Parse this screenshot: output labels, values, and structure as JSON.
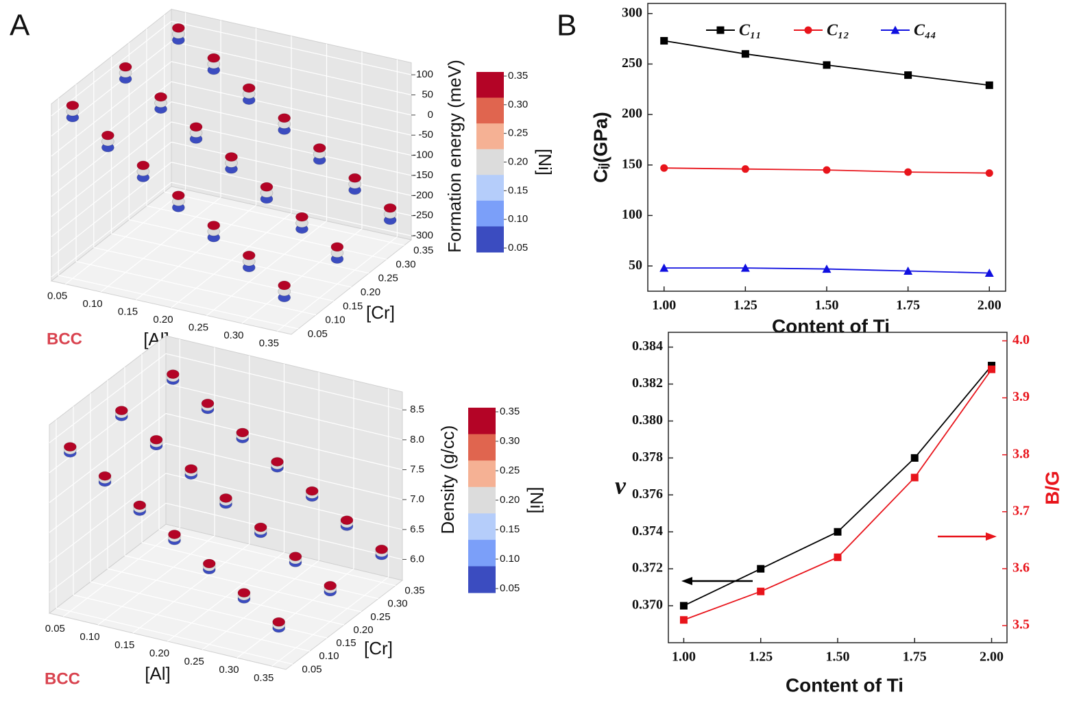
{
  "panel_labels": [
    "A",
    "B"
  ],
  "chart_data": [
    {
      "type": "scatter3d",
      "annotation": "BCC",
      "xlabel": "[Al]",
      "ylabel": "[Cr]",
      "zlabel": "Formation energy (meV)",
      "colorbar_label": "[Ni]",
      "xlim": [
        0.03,
        0.37
      ],
      "ylim": [
        0.03,
        0.37
      ],
      "zlim": [
        -310,
        130
      ],
      "xticks": [
        0.05,
        {
          "value": 0.1,
          "label": "0.10"
        },
        0.15,
        {
          "value": 0.2,
          "label": "0.20"
        },
        0.25,
        {
          "value": 0.3,
          "label": "0.30"
        },
        0.35
      ],
      "yticks": [
        0.05,
        {
          "value": 0.1,
          "label": "0.10"
        },
        0.15,
        {
          "value": 0.2,
          "label": "0.20"
        },
        0.25,
        {
          "value": 0.3,
          "label": "0.30"
        },
        0.35
      ],
      "zticks": [
        100,
        50,
        0,
        -50,
        -100,
        -150,
        -200,
        -250,
        -300
      ],
      "colorbar": {
        "ticks": [
          0.35,
          {
            "value": 0.3,
            "label": "0.30"
          },
          0.25,
          {
            "value": 0.2,
            "label": "0.20"
          },
          0.15,
          {
            "value": 0.1,
            "label": "0.10"
          },
          0.05
        ],
        "colors": [
          "#b40426",
          "#e0654f",
          "#f5b194",
          "#dcdcdc",
          "#b5cdfa",
          "#7b9ff9",
          "#3b4cc0"
        ]
      },
      "points": [
        [
          0.05,
          0.05,
          90,
          0.05
        ],
        [
          0.05,
          0.05,
          105,
          0.2
        ],
        [
          0.05,
          0.05,
          120,
          0.35
        ],
        [
          0.05,
          0.2,
          82,
          0.05
        ],
        [
          0.05,
          0.2,
          97,
          0.2
        ],
        [
          0.05,
          0.2,
          112,
          0.35
        ],
        [
          0.05,
          0.35,
          75,
          0.05
        ],
        [
          0.05,
          0.35,
          90,
          0.2
        ],
        [
          0.05,
          0.35,
          105,
          0.35
        ],
        [
          0.1,
          0.05,
          35,
          0.05
        ],
        [
          0.1,
          0.05,
          50,
          0.2
        ],
        [
          0.1,
          0.05,
          65,
          0.35
        ],
        [
          0.1,
          0.2,
          27,
          0.05
        ],
        [
          0.1,
          0.2,
          42,
          0.2
        ],
        [
          0.1,
          0.2,
          57,
          0.35
        ],
        [
          0.1,
          0.35,
          20,
          0.05
        ],
        [
          0.1,
          0.35,
          35,
          0.2
        ],
        [
          0.1,
          0.35,
          50,
          0.35
        ],
        [
          0.15,
          0.05,
          -20,
          0.05
        ],
        [
          0.15,
          0.05,
          -5,
          0.2
        ],
        [
          0.15,
          0.05,
          10,
          0.35
        ],
        [
          0.15,
          0.2,
          -28,
          0.05
        ],
        [
          0.15,
          0.2,
          -13,
          0.2
        ],
        [
          0.15,
          0.2,
          2,
          0.35
        ],
        [
          0.15,
          0.35,
          -35,
          0.05
        ],
        [
          0.15,
          0.35,
          -20,
          0.2
        ],
        [
          0.15,
          0.35,
          -5,
          0.35
        ],
        [
          0.2,
          0.05,
          -75,
          0.05
        ],
        [
          0.2,
          0.05,
          -60,
          0.2
        ],
        [
          0.2,
          0.05,
          -45,
          0.35
        ],
        [
          0.2,
          0.2,
          -83,
          0.05
        ],
        [
          0.2,
          0.2,
          -68,
          0.2
        ],
        [
          0.2,
          0.2,
          -53,
          0.35
        ],
        [
          0.2,
          0.35,
          -90,
          0.05
        ],
        [
          0.2,
          0.35,
          -75,
          0.2
        ],
        [
          0.2,
          0.35,
          -60,
          0.35
        ],
        [
          0.25,
          0.05,
          -130,
          0.05
        ],
        [
          0.25,
          0.05,
          -115,
          0.2
        ],
        [
          0.25,
          0.05,
          -100,
          0.35
        ],
        [
          0.25,
          0.2,
          -138,
          0.05
        ],
        [
          0.25,
          0.2,
          -123,
          0.2
        ],
        [
          0.25,
          0.2,
          -108,
          0.35
        ],
        [
          0.25,
          0.35,
          -145,
          0.05
        ],
        [
          0.25,
          0.35,
          -130,
          0.2
        ],
        [
          0.25,
          0.35,
          -115,
          0.35
        ],
        [
          0.3,
          0.05,
          -185,
          0.05
        ],
        [
          0.3,
          0.05,
          -170,
          0.2
        ],
        [
          0.3,
          0.05,
          -155,
          0.35
        ],
        [
          0.3,
          0.2,
          -193,
          0.05
        ],
        [
          0.3,
          0.2,
          -178,
          0.2
        ],
        [
          0.3,
          0.2,
          -163,
          0.35
        ],
        [
          0.3,
          0.35,
          -200,
          0.05
        ],
        [
          0.3,
          0.35,
          -185,
          0.2
        ],
        [
          0.3,
          0.35,
          -170,
          0.35
        ],
        [
          0.35,
          0.05,
          -240,
          0.05
        ],
        [
          0.35,
          0.05,
          -225,
          0.2
        ],
        [
          0.35,
          0.05,
          -210,
          0.35
        ],
        [
          0.35,
          0.2,
          -248,
          0.05
        ],
        [
          0.35,
          0.2,
          -233,
          0.2
        ],
        [
          0.35,
          0.2,
          -218,
          0.35
        ],
        [
          0.35,
          0.35,
          -255,
          0.05
        ],
        [
          0.35,
          0.35,
          -240,
          0.2
        ],
        [
          0.35,
          0.35,
          -225,
          0.35
        ]
      ]
    },
    {
      "type": "scatter3d",
      "annotation": "BCC",
      "xlabel": "[Al]",
      "ylabel": "[Cr]",
      "zlabel": "Density (g/cc)",
      "colorbar_label": "[Ni]",
      "xlim": [
        0.03,
        0.37
      ],
      "ylim": [
        0.03,
        0.37
      ],
      "zlim": [
        5.65,
        8.8
      ],
      "xticks": [
        0.05,
        {
          "value": 0.1,
          "label": "0.10"
        },
        0.15,
        {
          "value": 0.2,
          "label": "0.20"
        },
        0.25,
        {
          "value": 0.3,
          "label": "0.30"
        },
        0.35
      ],
      "yticks": [
        0.05,
        {
          "value": 0.1,
          "label": "0.10"
        },
        0.15,
        {
          "value": 0.2,
          "label": "0.20"
        },
        0.25,
        {
          "value": 0.3,
          "label": "0.30"
        },
        0.35
      ],
      "zticks": [
        8.5,
        {
          "value": 8,
          "label": "8.0"
        },
        7.5,
        {
          "value": 7,
          "label": "7.0"
        },
        6.5,
        {
          "value": 6,
          "label": "6.0"
        }
      ],
      "colorbar": {
        "ticks": [
          0.35,
          {
            "value": 0.3,
            "label": "0.30"
          },
          0.25,
          {
            "value": 0.2,
            "label": "0.20"
          },
          0.15,
          {
            "value": 0.1,
            "label": "0.10"
          },
          0.05
        ],
        "colors": [
          "#b40426",
          "#e0654f",
          "#f5b194",
          "#dcdcdc",
          "#b5cdfa",
          "#7b9ff9",
          "#3b4cc0"
        ]
      },
      "points": [
        [
          0.05,
          0.05,
          8.3,
          0.05
        ],
        [
          0.05,
          0.05,
          8.35,
          0.2
        ],
        [
          0.05,
          0.05,
          8.4,
          0.35
        ],
        [
          0.05,
          0.2,
          8.25,
          0.05
        ],
        [
          0.05,
          0.2,
          8.3,
          0.2
        ],
        [
          0.05,
          0.2,
          8.35,
          0.35
        ],
        [
          0.05,
          0.35,
          8.2,
          0.05
        ],
        [
          0.05,
          0.35,
          8.25,
          0.2
        ],
        [
          0.05,
          0.35,
          8.3,
          0.35
        ],
        [
          0.1,
          0.05,
          7.95,
          0.05
        ],
        [
          0.1,
          0.05,
          8.0,
          0.2
        ],
        [
          0.1,
          0.05,
          8.05,
          0.35
        ],
        [
          0.1,
          0.2,
          7.9,
          0.05
        ],
        [
          0.1,
          0.2,
          7.95,
          0.2
        ],
        [
          0.1,
          0.2,
          8.0,
          0.35
        ],
        [
          0.1,
          0.35,
          7.85,
          0.05
        ],
        [
          0.1,
          0.35,
          7.9,
          0.2
        ],
        [
          0.1,
          0.35,
          7.95,
          0.35
        ],
        [
          0.15,
          0.05,
          7.6,
          0.05
        ],
        [
          0.15,
          0.05,
          7.65,
          0.2
        ],
        [
          0.15,
          0.05,
          7.7,
          0.35
        ],
        [
          0.15,
          0.2,
          7.55,
          0.05
        ],
        [
          0.15,
          0.2,
          7.6,
          0.2
        ],
        [
          0.15,
          0.2,
          7.65,
          0.35
        ],
        [
          0.15,
          0.35,
          7.5,
          0.05
        ],
        [
          0.15,
          0.35,
          7.55,
          0.2
        ],
        [
          0.15,
          0.35,
          7.6,
          0.35
        ],
        [
          0.2,
          0.05,
          7.25,
          0.05
        ],
        [
          0.2,
          0.05,
          7.3,
          0.2
        ],
        [
          0.2,
          0.05,
          7.35,
          0.35
        ],
        [
          0.2,
          0.2,
          7.2,
          0.05
        ],
        [
          0.2,
          0.2,
          7.25,
          0.2
        ],
        [
          0.2,
          0.2,
          7.3,
          0.35
        ],
        [
          0.2,
          0.35,
          7.15,
          0.05
        ],
        [
          0.2,
          0.35,
          7.2,
          0.2
        ],
        [
          0.2,
          0.35,
          7.25,
          0.35
        ],
        [
          0.25,
          0.05,
          6.9,
          0.05
        ],
        [
          0.25,
          0.05,
          6.95,
          0.2
        ],
        [
          0.25,
          0.05,
          7.0,
          0.35
        ],
        [
          0.25,
          0.2,
          6.85,
          0.05
        ],
        [
          0.25,
          0.2,
          6.9,
          0.2
        ],
        [
          0.25,
          0.2,
          6.95,
          0.35
        ],
        [
          0.25,
          0.35,
          6.8,
          0.05
        ],
        [
          0.25,
          0.35,
          6.85,
          0.2
        ],
        [
          0.25,
          0.35,
          6.9,
          0.35
        ],
        [
          0.3,
          0.05,
          6.55,
          0.05
        ],
        [
          0.3,
          0.05,
          6.6,
          0.2
        ],
        [
          0.3,
          0.05,
          6.65,
          0.35
        ],
        [
          0.3,
          0.2,
          6.5,
          0.05
        ],
        [
          0.3,
          0.2,
          6.55,
          0.2
        ],
        [
          0.3,
          0.2,
          6.6,
          0.35
        ],
        [
          0.3,
          0.35,
          6.45,
          0.05
        ],
        [
          0.3,
          0.35,
          6.5,
          0.2
        ],
        [
          0.3,
          0.35,
          6.55,
          0.35
        ],
        [
          0.35,
          0.05,
          6.2,
          0.05
        ],
        [
          0.35,
          0.05,
          6.25,
          0.2
        ],
        [
          0.35,
          0.05,
          6.3,
          0.35
        ],
        [
          0.35,
          0.2,
          6.15,
          0.05
        ],
        [
          0.35,
          0.2,
          6.2,
          0.2
        ],
        [
          0.35,
          0.2,
          6.25,
          0.35
        ],
        [
          0.35,
          0.35,
          6.1,
          0.05
        ],
        [
          0.35,
          0.35,
          6.15,
          0.2
        ],
        [
          0.35,
          0.35,
          6.2,
          0.35
        ]
      ]
    },
    {
      "type": "line",
      "xlabel": "Content of Ti",
      "ylabel": "Cᵢⱼ(GPa)",
      "x": [
        1,
        1.25,
        1.5,
        1.75,
        2
      ],
      "xlim": [
        0.95,
        2.05
      ],
      "ylim": [
        25,
        310
      ],
      "xticks": [
        {
          "value": 1,
          "label": "1.00"
        },
        1.25,
        {
          "value": 1.5,
          "label": "1.50"
        },
        1.75,
        {
          "value": 2,
          "label": "2.00"
        }
      ],
      "yticks": [
        50,
        100,
        150,
        200,
        250,
        300
      ],
      "legend": "top",
      "series": [
        {
          "name": "C₁₁",
          "color": "#000000",
          "marker": "square",
          "values": [
            273,
            260,
            249,
            239,
            229
          ]
        },
        {
          "name": "C₁₂",
          "color": "#e8141b",
          "marker": "circle",
          "values": [
            147,
            146,
            145,
            143,
            142
          ]
        },
        {
          "name": "C₄₄",
          "color": "#1010e0",
          "marker": "triangle",
          "values": [
            48,
            48,
            47,
            45,
            43
          ]
        }
      ]
    },
    {
      "type": "line",
      "xlabel": "Content of Ti",
      "ylabel": "ν",
      "y2label": "B/G",
      "x": [
        1,
        1.25,
        1.5,
        1.75,
        2
      ],
      "xlim": [
        0.95,
        2.05
      ],
      "ylim": [
        0.368,
        0.3848
      ],
      "y2lim": [
        3.47,
        4.015
      ],
      "xticks": [
        {
          "value": 1,
          "label": "1.00"
        },
        1.25,
        {
          "value": 1.5,
          "label": "1.50"
        },
        1.75,
        {
          "value": 2,
          "label": "2.00"
        }
      ],
      "yticks": [
        {
          "value": 0.37,
          "label": "0.370"
        },
        0.372,
        0.374,
        0.376,
        0.378,
        {
          "value": 0.38,
          "label": "0.380"
        },
        0.382,
        0.384
      ],
      "y2ticks": [
        3.5,
        3.6,
        3.7,
        3.8,
        3.9,
        {
          "value": 4,
          "label": "4.0"
        }
      ],
      "y2color": "#e8141b",
      "series": [
        {
          "color": "#000000",
          "marker": "square",
          "values": [
            0.37,
            0.372,
            0.374,
            0.378,
            0.383
          ]
        },
        {
          "color": "#e8141b",
          "marker": "square",
          "axis": "y2",
          "values": [
            3.51,
            3.56,
            3.62,
            3.76,
            3.95
          ]
        }
      ]
    }
  ]
}
